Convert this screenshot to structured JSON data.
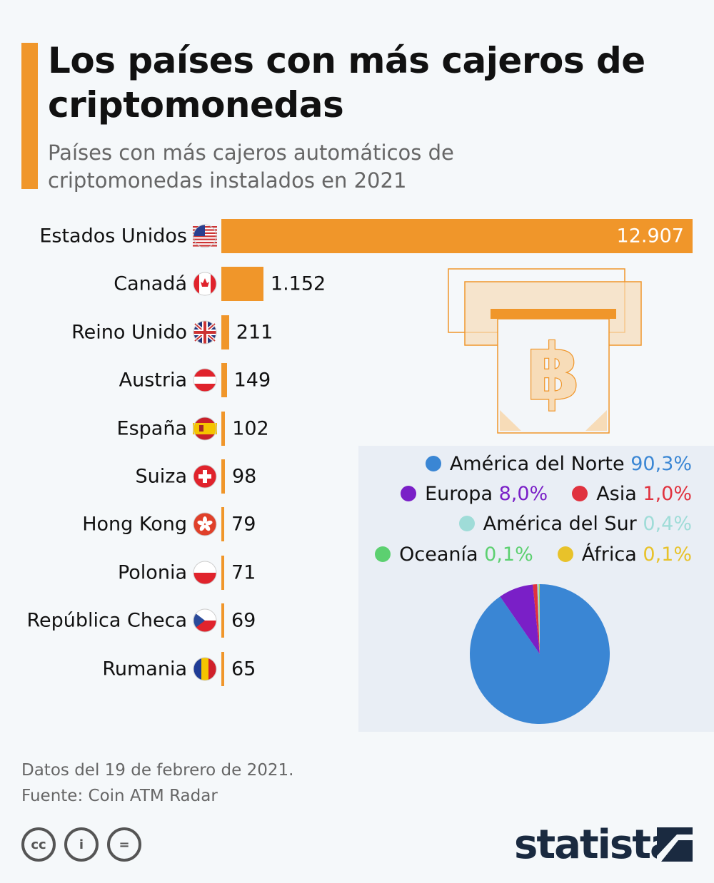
{
  "title": "Los países con más cajeros de criptomonedas",
  "subtitle": "Países con más cajeros automáticos de criptomonedas instalados en 2021",
  "chart_data": [
    {
      "type": "bar",
      "orientation": "horizontal",
      "categories": [
        "Estados Unidos",
        "Canadá",
        "Reino Unido",
        "Austria",
        "España",
        "Suiza",
        "Hong Kong",
        "Polonia",
        "República Checa",
        "Rumania"
      ],
      "values": [
        12907,
        1152,
        211,
        149,
        102,
        98,
        79,
        71,
        69,
        65
      ],
      "value_labels": [
        "12.907",
        "1.152",
        "211",
        "149",
        "102",
        "98",
        "79",
        "71",
        "69",
        "65"
      ],
      "bar_color": "#f0962a"
    },
    {
      "type": "pie",
      "legend_placement": "top",
      "categories": [
        "América del Norte",
        "Europa",
        "Asia",
        "América del Sur",
        "Oceanía",
        "África"
      ],
      "values": [
        90.3,
        8.0,
        1.0,
        0.4,
        0.1,
        0.1
      ],
      "value_labels": [
        "90,3%",
        "8,0%",
        "1,0%",
        "0,4%",
        "0,1%",
        "0,1%"
      ],
      "colors": [
        "#3a86d4",
        "#7a1fc7",
        "#e0323f",
        "#9fdcd8",
        "#5cd070",
        "#e8c22a"
      ]
    }
  ],
  "footer": {
    "note": "Datos del 19 de febrero de 2021.",
    "source": "Fuente: Coin ATM Radar"
  },
  "license_icons": [
    "cc",
    "by",
    "nd"
  ],
  "license_labels": {
    "cc": "cc",
    "by": "i",
    "nd": "="
  },
  "brand": "statista"
}
